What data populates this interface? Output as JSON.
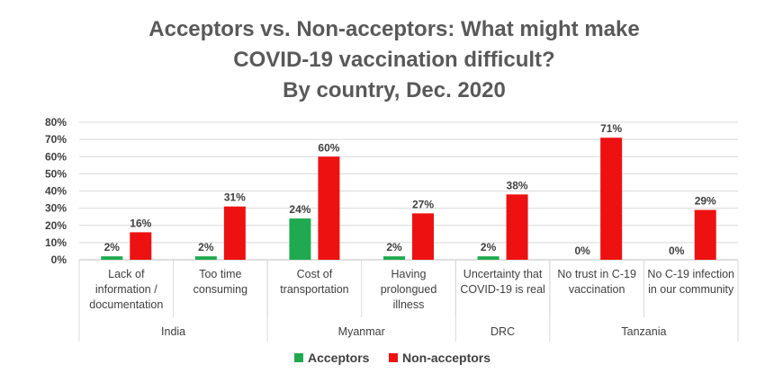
{
  "chart_data": {
    "type": "bar",
    "title_lines": [
      "Acceptors vs. Non-acceptors:   What might make",
      "COVID-19 vaccination difficult?",
      "By country, Dec. 2020"
    ],
    "categories": [
      [
        "Lack of",
        "information /",
        "documentation"
      ],
      [
        "Too time",
        "consuming"
      ],
      [
        "Cost of",
        "transportation"
      ],
      [
        "Having",
        "prolongued",
        "illness"
      ],
      [
        "Uncertainty that",
        "COVID-19 is real"
      ],
      [
        "No trust in C-19",
        "vaccination"
      ],
      [
        "No C-19 infection",
        "in our community"
      ]
    ],
    "groups": [
      {
        "label": "India",
        "count": 2
      },
      {
        "label": "Myanmar",
        "count": 2
      },
      {
        "label": "DRC",
        "count": 1
      },
      {
        "label": "Tanzania",
        "count": 2
      }
    ],
    "series": [
      {
        "name": "Acceptors",
        "color": "#1faa4f",
        "values": [
          2,
          2,
          24,
          2,
          2,
          0,
          0
        ],
        "labels": [
          "2%",
          "2%",
          "24%",
          "2%",
          "2%",
          "0%",
          "0%"
        ]
      },
      {
        "name": "Non-acceptors",
        "color": "#ee1111",
        "values": [
          16,
          31,
          60,
          27,
          38,
          71,
          29
        ],
        "labels": [
          "16%",
          "31%",
          "60%",
          "27%",
          "38%",
          "71%",
          "29%"
        ]
      }
    ],
    "ylim": [
      0,
      80
    ],
    "yticks": [
      "0%",
      "10%",
      "20%",
      "30%",
      "40%",
      "50%",
      "60%",
      "70%",
      "80%"
    ],
    "grid": true,
    "legend_position": "bottom"
  }
}
